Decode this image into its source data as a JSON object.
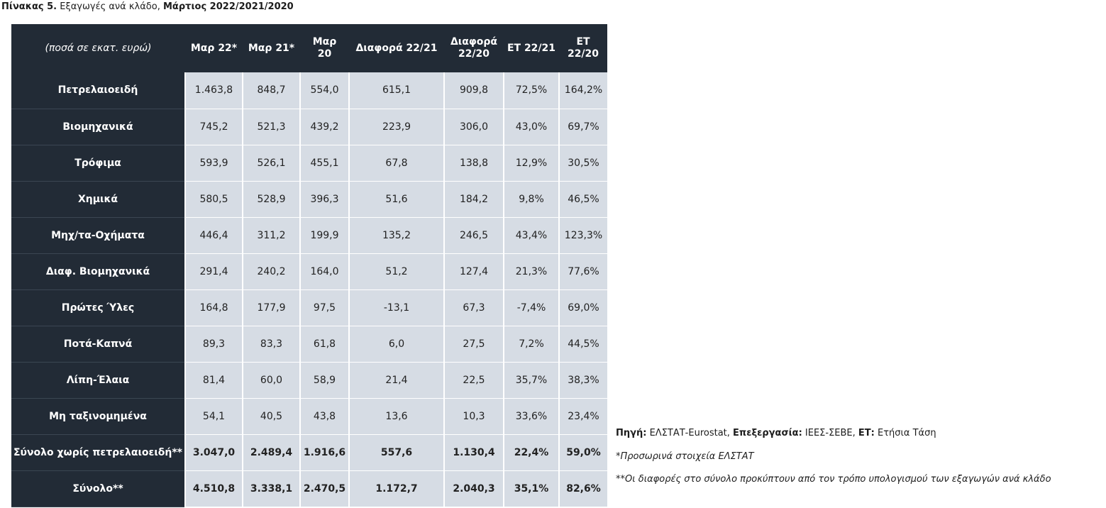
{
  "title": {
    "prefix": "Πίνακας 5.",
    "text": " Εξαγωγές ανά κλάδο, ",
    "period": "Μάρτιος 2022/2021/2020"
  },
  "table": {
    "headers": [
      "(ποσά σε εκατ. ευρώ)",
      "Μαρ 22*",
      "Μαρ 21*",
      "Μαρ\n20",
      "Διαφορά 22/21",
      "Διαφορά\n22/20",
      "ΕΤ 22/21",
      "ΕΤ\n22/20"
    ],
    "rows": [
      [
        "Πετρελαιοειδή",
        "1.463,8",
        "848,7",
        "554,0",
        "615,1",
        "909,8",
        "72,5%",
        "164,2%"
      ],
      [
        "Βιομηχανικά",
        "745,2",
        "521,3",
        "439,2",
        "223,9",
        "306,0",
        "43,0%",
        "69,7%"
      ],
      [
        "Τρόφιμα",
        "593,9",
        "526,1",
        "455,1",
        "67,8",
        "138,8",
        "12,9%",
        "30,5%"
      ],
      [
        "Χημικά",
        "580,5",
        "528,9",
        "396,3",
        "51,6",
        "184,2",
        "9,8%",
        "46,5%"
      ],
      [
        "Μηχ/τα-Οχήματα",
        "446,4",
        "311,2",
        "199,9",
        "135,2",
        "246,5",
        "43,4%",
        "123,3%"
      ],
      [
        "Διαφ. Βιομηχανικά",
        "291,4",
        "240,2",
        "164,0",
        "51,2",
        "127,4",
        "21,3%",
        "77,6%"
      ],
      [
        "Πρώτες Ύλες",
        "164,8",
        "177,9",
        "97,5",
        "-13,1",
        "67,3",
        "-7,4%",
        "69,0%"
      ],
      [
        "Ποτά-Καπνά",
        "89,3",
        "83,3",
        "61,8",
        "6,0",
        "27,5",
        "7,2%",
        "44,5%"
      ],
      [
        "Λίπη-Έλαια",
        "81,4",
        "60,0",
        "58,9",
        "21,4",
        "22,5",
        "35,7%",
        "38,3%"
      ],
      [
        "Μη ταξινομημένα",
        "54,1",
        "40,5",
        "43,8",
        "13,6",
        "10,3",
        "33,6%",
        "23,4%"
      ],
      [
        "Σύνολο χωρίς πετρελαιοειδή**",
        "3.047,0",
        "2.489,4",
        "1.916,6",
        "557,6",
        "1.130,4",
        "22,4%",
        "59,0%"
      ],
      [
        "Σύνολο**",
        "4.510,8",
        "3.338,1",
        "2.470,5",
        "1.172,7",
        "2.040,3",
        "35,1%",
        "82,6%"
      ]
    ]
  },
  "notes": {
    "source_label": "Πηγή:",
    "source_value": " ΕΛΣΤΑΤ-Eurostat, ",
    "processing_label": "Επεξεργασία:",
    "processing_value": " ΙΕΕΣ-ΣΕΒΕ, ",
    "et_label": "ΕΤ:",
    "et_value": " Ετήσια Τάση",
    "provisional": "*Προσωρινά στοιχεία ΕΛΣΤΑΤ",
    "differences": "**Οι διαφορές στο σύνολο προκύπτουν από τον τρόπο υπολογισμού των εξαγωγών ανά κλάδο"
  }
}
